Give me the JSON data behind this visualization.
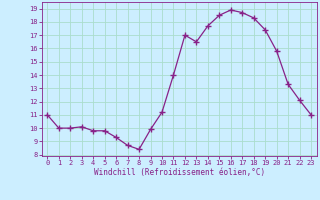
{
  "x": [
    0,
    1,
    2,
    3,
    4,
    5,
    6,
    7,
    8,
    9,
    10,
    11,
    12,
    13,
    14,
    15,
    16,
    17,
    18,
    19,
    20,
    21,
    22,
    23
  ],
  "y": [
    11,
    10,
    10,
    10.1,
    9.8,
    9.8,
    9.3,
    8.7,
    8.4,
    9.9,
    11.2,
    14.0,
    17.0,
    16.5,
    17.7,
    18.5,
    18.9,
    18.7,
    18.3,
    17.4,
    15.8,
    13.3,
    12.1,
    11.0
  ],
  "line_color": "#882288",
  "marker": "+",
  "marker_size": 4,
  "bg_color": "#cceeff",
  "grid_color": "#aaddcc",
  "xlabel": "Windchill (Refroidissement éolien,°C)",
  "xlabel_color": "#882288",
  "tick_color": "#882288",
  "ylim": [
    7.9,
    19.5
  ],
  "xlim": [
    -0.5,
    23.5
  ],
  "yticks": [
    8,
    9,
    10,
    11,
    12,
    13,
    14,
    15,
    16,
    17,
    18,
    19
  ],
  "xticks": [
    0,
    1,
    2,
    3,
    4,
    5,
    6,
    7,
    8,
    9,
    10,
    11,
    12,
    13,
    14,
    15,
    16,
    17,
    18,
    19,
    20,
    21,
    22,
    23
  ],
  "title_color": "#882288",
  "title_fontsize": 6.5,
  "font_family": "monospace"
}
